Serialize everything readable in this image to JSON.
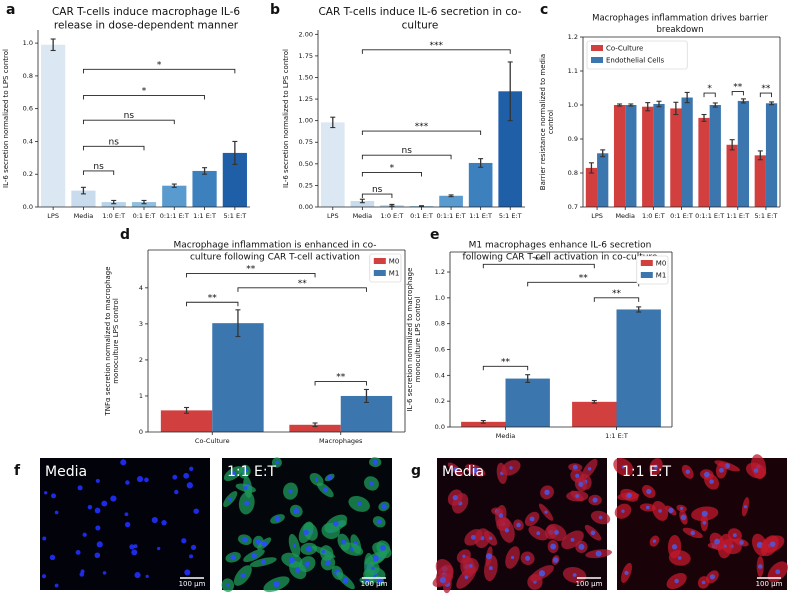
{
  "chart_data": [
    {
      "type": "bar",
      "panel": "a",
      "title": [
        "CAR T-cells induce macrophage IL-6",
        "release in dose-dependent manner"
      ],
      "ylabel": [
        "IL-6 secretion normalized to LPS control"
      ],
      "categories": [
        "LPS",
        "Media",
        "1:0 E:T",
        "0:1 E:T",
        "0:1:1 E:T",
        "1:1 E:T",
        "5:1 E:T"
      ],
      "values": [
        0.99,
        0.1,
        0.03,
        0.03,
        0.13,
        0.22,
        0.33
      ],
      "errors": [
        0.035,
        0.02,
        0.01,
        0.01,
        0.01,
        0.02,
        0.07
      ],
      "colors": [
        "#dbe7f3",
        "#c9dcee",
        "#b7d3ea",
        "#8fbfe0",
        "#5a9bcf",
        "#3d80be",
        "#1f5fa8"
      ],
      "ylim": [
        0,
        1.08
      ],
      "yticks": [
        {
          "value": 0,
          "label": "0.0"
        },
        0.2,
        0.4,
        0.6,
        0.8,
        {
          "value": 1,
          "label": "1.0"
        }
      ],
      "brackets": [
        {
          "from": 1,
          "to": 2,
          "y": 0.22,
          "label": "ns"
        },
        {
          "from": 1,
          "to": 3,
          "y": 0.37,
          "label": "ns"
        },
        {
          "from": 1,
          "to": 4,
          "y": 0.53,
          "label": "ns"
        },
        {
          "from": 1,
          "to": 5,
          "y": 0.68,
          "label": "*"
        },
        {
          "from": 1,
          "to": 6,
          "y": 0.84,
          "label": "*"
        }
      ]
    },
    {
      "type": "bar",
      "panel": "b",
      "title": [
        "CAR T-cells induce IL-6 secretion in co-",
        "culture"
      ],
      "ylabel": [
        "IL-6 secretion normalized to LPS control"
      ],
      "categories": [
        "LPS",
        "Media",
        "1:0 E:T",
        "0:1 E:T",
        "0:1:1 E:T",
        "1:1 E:T",
        "5:1 E:T"
      ],
      "values": [
        0.98,
        0.07,
        0.02,
        0.01,
        0.13,
        0.51,
        1.34
      ],
      "errors": [
        0.06,
        0.02,
        0.01,
        0.005,
        0.01,
        0.05,
        0.34
      ],
      "colors": [
        "#dbe7f3",
        "#c9dcee",
        "#b7d3ea",
        "#8fbfe0",
        "#5a9bcf",
        "#3d80be",
        "#1f5fa8"
      ],
      "ylim": [
        0,
        2.05
      ],
      "yticks": [
        {
          "value": 0,
          "label": "0.00"
        },
        0.25,
        {
          "value": 0.5,
          "label": "0.50"
        },
        0.75,
        {
          "value": 1,
          "label": "1.00"
        },
        1.25,
        {
          "value": 1.5,
          "label": "1.50"
        },
        1.75,
        {
          "value": 2,
          "label": "2.00"
        }
      ],
      "brackets": [
        {
          "from": 1,
          "to": 2,
          "y": 0.15,
          "label": "ns"
        },
        {
          "from": 1,
          "to": 3,
          "y": 0.4,
          "label": "*"
        },
        {
          "from": 1,
          "to": 4,
          "y": 0.6,
          "label": "ns"
        },
        {
          "from": 1,
          "to": 5,
          "y": 0.88,
          "label": "***"
        },
        {
          "from": 1,
          "to": 6,
          "y": 1.82,
          "label": "***"
        }
      ]
    },
    {
      "type": "bar",
      "panel": "c",
      "title": [
        "Macrophages inflammation drives barrier",
        "breakdown"
      ],
      "ylabel": [
        "Barrier resistance normalized to media",
        "control"
      ],
      "categories": [
        "LPS",
        "Media",
        "1:0 E:T",
        "0:1 E:T",
        "0:1:1 E:T",
        "1:1 E:T",
        "5:1 E:T"
      ],
      "series": [
        {
          "name": "Co-Culture",
          "color": "#d23f3f",
          "values": [
            0.815,
            1.0,
            0.995,
            0.99,
            0.962,
            0.883,
            0.852
          ],
          "errors": [
            0.015,
            0.003,
            0.012,
            0.018,
            0.01,
            0.015,
            0.013
          ]
        },
        {
          "name": "Endothelial Cells",
          "color": "#3b76ae",
          "values": [
            0.858,
            1.0,
            1.003,
            1.022,
            1.0,
            1.012,
            1.005
          ],
          "errors": [
            0.01,
            0.003,
            0.008,
            0.015,
            0.006,
            0.006,
            0.004
          ]
        }
      ],
      "legend": "upper left",
      "ylim": [
        0.7,
        1.2
      ],
      "yticks": [
        0.7,
        0.8,
        0.9,
        {
          "value": 1,
          "label": "1.0"
        },
        1.1,
        1.2
      ],
      "brackets": [
        {
          "from": [
            4,
            0
          ],
          "to": [
            4,
            1
          ],
          "y": 1.035,
          "label": "*"
        },
        {
          "from": [
            5,
            0
          ],
          "to": [
            5,
            1
          ],
          "y": 1.04,
          "label": "**"
        },
        {
          "from": [
            6,
            0
          ],
          "to": [
            6,
            1
          ],
          "y": 1.035,
          "label": "**"
        }
      ]
    },
    {
      "type": "bar",
      "panel": "d",
      "title": [
        "Macrophage inflammation is enhanced in co-",
        "culture following CAR T-cell activation"
      ],
      "ylabel": [
        "TNFα secretion normalized to macrophage",
        "monoculture LPS control"
      ],
      "categories": [
        "Co-Culture",
        "Macrophages"
      ],
      "series": [
        {
          "name": "M0",
          "color": "#d23f3f",
          "values": [
            0.6,
            0.2
          ],
          "errors": [
            0.08,
            0.05
          ]
        },
        {
          "name": "M1",
          "color": "#3b76ae",
          "values": [
            3.02,
            1.0
          ],
          "errors": [
            0.37,
            0.18
          ]
        }
      ],
      "legend": "upper right",
      "ylim": [
        0,
        5.05
      ],
      "yticks": [
        0,
        1,
        2,
        3,
        4
      ],
      "brackets": [
        {
          "from": [
            0,
            0
          ],
          "to": [
            0,
            1
          ],
          "y": 3.6,
          "label": "**"
        },
        {
          "from": [
            0,
            1
          ],
          "to": [
            1,
            1
          ],
          "y": 4.0,
          "label": "**"
        },
        {
          "from": [
            0,
            0
          ],
          "to": [
            1,
            0
          ],
          "y": 4.4,
          "label": "**"
        },
        {
          "from": [
            1,
            0
          ],
          "to": [
            1,
            1
          ],
          "y": 1.4,
          "label": "**"
        }
      ]
    },
    {
      "type": "bar",
      "panel": "e",
      "title": [
        "M1 macrophages enhance IL-6 secretion",
        "following CAR T-cell activation in co-culture"
      ],
      "ylabel": [
        "IL-6 secretion normalized to macrophage",
        "monoculture LPS control"
      ],
      "categories": [
        "Media",
        "1:1 E:T"
      ],
      "series": [
        {
          "name": "M0",
          "color": "#d23f3f",
          "values": [
            0.04,
            0.195
          ],
          "errors": [
            0.01,
            0.01
          ]
        },
        {
          "name": "M1",
          "color": "#3b76ae",
          "values": [
            0.375,
            0.91
          ],
          "errors": [
            0.03,
            0.02
          ]
        }
      ],
      "legend": "upper right",
      "ylim": [
        0,
        1.355
      ],
      "yticks": [
        {
          "value": 0,
          "label": "0.0"
        },
        0.2,
        0.4,
        0.6,
        0.8,
        {
          "value": 1,
          "label": "1.0"
        },
        1.2
      ],
      "brackets": [
        {
          "from": [
            0,
            0
          ],
          "to": [
            0,
            1
          ],
          "y": 0.47,
          "label": "**"
        },
        {
          "from": [
            1,
            0
          ],
          "to": [
            1,
            1
          ],
          "y": 1.0,
          "label": "**"
        },
        {
          "from": [
            0,
            1
          ],
          "to": [
            1,
            1
          ],
          "y": 1.12,
          "label": "**"
        },
        {
          "from": [
            0,
            0
          ],
          "to": [
            1,
            0
          ],
          "y": 1.26,
          "label": "**"
        }
      ]
    }
  ],
  "images": [
    {
      "panel": "f",
      "tiles": [
        {
          "label": "Media",
          "scale": "100 μm"
        },
        {
          "label": "1:1 E:T",
          "scale": "100 μm"
        }
      ]
    },
    {
      "panel": "g",
      "tiles": [
        {
          "label": "Media",
          "scale": "100 μm"
        },
        {
          "label": "1:1 E:T",
          "scale": "100 μm"
        }
      ]
    }
  ]
}
